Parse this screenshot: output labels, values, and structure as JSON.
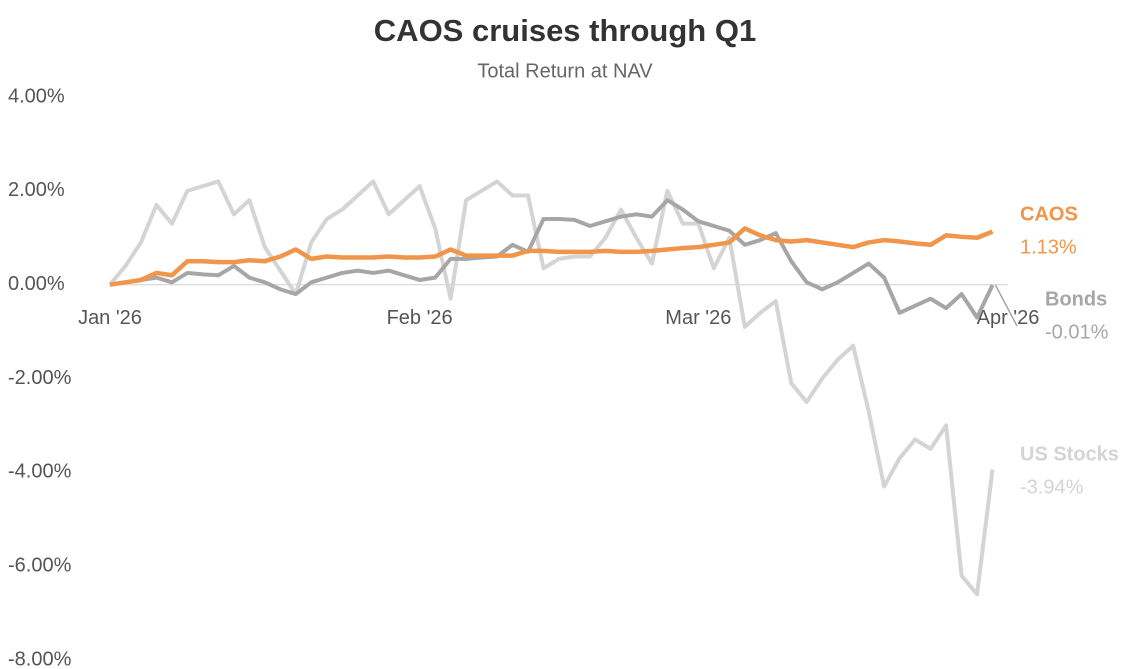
{
  "chart_data": {
    "type": "line",
    "title": "CAOS cruises through Q1",
    "subtitle": "Total Return at NAV",
    "x": [
      0,
      1,
      2,
      3,
      4,
      5,
      6,
      7,
      8,
      9,
      10,
      11,
      12,
      13,
      14,
      15,
      16,
      17,
      18,
      19,
      20,
      21,
      22,
      23,
      24,
      25,
      26,
      27,
      28,
      29,
      30,
      31,
      32,
      33,
      34,
      35,
      36,
      37,
      38,
      39,
      40,
      41,
      42,
      43,
      44,
      45,
      46,
      47,
      48,
      49,
      50,
      51,
      52,
      53,
      54,
      55,
      56,
      57
    ],
    "xlim": [
      0,
      58
    ],
    "xticks": [
      {
        "value": 0,
        "label": "Jan '26"
      },
      {
        "value": 20,
        "label": "Feb '26"
      },
      {
        "value": 38,
        "label": "Mar '26"
      },
      {
        "value": 58,
        "label": "Apr '26"
      }
    ],
    "ylim": [
      -8,
      4
    ],
    "yticks": [
      {
        "value": 4,
        "label": "4.00%"
      },
      {
        "value": 2,
        "label": "2.00%"
      },
      {
        "value": 0,
        "label": "0.00%"
      },
      {
        "value": -2,
        "label": "-2.00%"
      },
      {
        "value": -4,
        "label": "-4.00%"
      },
      {
        "value": -6,
        "label": "-6.00%"
      },
      {
        "value": -8,
        "label": "-8.00%"
      }
    ],
    "series": [
      {
        "name": "CAOS",
        "color": "#f0954a",
        "values": [
          0,
          0.05,
          0.1,
          0.25,
          0.2,
          0.5,
          0.5,
          0.48,
          0.48,
          0.52,
          0.5,
          0.6,
          0.75,
          0.55,
          0.6,
          0.58,
          0.58,
          0.58,
          0.6,
          0.58,
          0.58,
          0.6,
          0.75,
          0.62,
          0.62,
          0.62,
          0.62,
          0.72,
          0.72,
          0.7,
          0.7,
          0.7,
          0.72,
          0.7,
          0.7,
          0.72,
          0.75,
          0.78,
          0.8,
          0.85,
          0.9,
          1.2,
          1.05,
          0.95,
          0.92,
          0.95,
          0.9,
          0.85,
          0.8,
          0.9,
          0.95,
          0.92,
          0.88,
          0.85,
          1.05,
          1.02,
          1.0,
          1.13
        ],
        "value_labels": [
          null,
          null,
          null,
          null,
          null,
          null,
          null,
          null,
          null,
          null,
          null,
          null,
          null,
          null,
          null,
          null,
          null,
          null,
          null,
          null,
          null,
          null,
          null,
          null,
          null,
          null,
          null,
          null,
          null,
          null,
          null,
          null,
          null,
          null,
          null,
          null,
          null,
          null,
          null,
          null,
          null,
          null,
          null,
          null,
          null,
          null,
          null,
          null,
          null,
          null,
          null,
          null,
          null,
          null,
          null,
          null,
          null,
          "1.13%"
        ]
      },
      {
        "name": "Bonds",
        "color": "#a6a6a6",
        "values": [
          0,
          0.05,
          0.1,
          0.15,
          0.05,
          0.25,
          0.22,
          0.2,
          0.4,
          0.15,
          0.05,
          -0.1,
          -0.2,
          0.05,
          0.15,
          0.25,
          0.3,
          0.25,
          0.3,
          0.2,
          0.1,
          0.15,
          0.55,
          0.55,
          0.58,
          0.6,
          0.85,
          0.7,
          1.4,
          1.4,
          1.38,
          1.25,
          1.35,
          1.45,
          1.5,
          1.45,
          1.8,
          1.6,
          1.35,
          1.25,
          1.15,
          0.85,
          0.95,
          1.1,
          0.5,
          0.05,
          -0.1,
          0.05,
          0.25,
          0.45,
          0.15,
          -0.6,
          -0.45,
          -0.3,
          -0.5,
          -0.2,
          -0.7,
          -0.01
        ],
        "value_labels": [
          null,
          null,
          null,
          null,
          null,
          null,
          null,
          null,
          null,
          null,
          null,
          null,
          null,
          null,
          null,
          null,
          null,
          null,
          null,
          null,
          null,
          null,
          null,
          null,
          null,
          null,
          null,
          null,
          null,
          null,
          null,
          null,
          null,
          null,
          null,
          null,
          null,
          null,
          null,
          null,
          null,
          null,
          null,
          null,
          null,
          null,
          null,
          null,
          null,
          null,
          null,
          null,
          null,
          null,
          null,
          null,
          null,
          "-0.01%"
        ]
      },
      {
        "name": "US Stocks",
        "color": "#d4d4d4",
        "values": [
          0,
          0.4,
          0.9,
          1.7,
          1.3,
          2.0,
          2.1,
          2.2,
          1.5,
          1.8,
          0.8,
          0.3,
          -0.2,
          0.9,
          1.4,
          1.6,
          1.9,
          2.2,
          1.5,
          1.8,
          2.1,
          1.2,
          -0.3,
          1.8,
          2.0,
          2.2,
          1.9,
          1.9,
          0.35,
          0.55,
          0.6,
          0.6,
          1.0,
          1.6,
          1.0,
          0.45,
          2.0,
          1.3,
          1.3,
          0.35,
          1.0,
          -0.9,
          -0.6,
          -0.35,
          -2.1,
          -2.5,
          -2.0,
          -1.6,
          -1.3,
          -2.7,
          -4.3,
          -3.7,
          -3.3,
          -3.5,
          -3.0,
          -6.2,
          -6.6,
          -3.94
        ],
        "value_labels": [
          null,
          null,
          null,
          null,
          null,
          null,
          null,
          null,
          null,
          null,
          null,
          null,
          null,
          null,
          null,
          null,
          null,
          null,
          null,
          null,
          null,
          null,
          null,
          null,
          null,
          null,
          null,
          null,
          null,
          null,
          null,
          null,
          null,
          null,
          null,
          null,
          null,
          null,
          null,
          null,
          null,
          null,
          null,
          null,
          null,
          null,
          null,
          null,
          null,
          null,
          null,
          null,
          null,
          null,
          null,
          null,
          null,
          "-3.94%"
        ]
      }
    ]
  }
}
